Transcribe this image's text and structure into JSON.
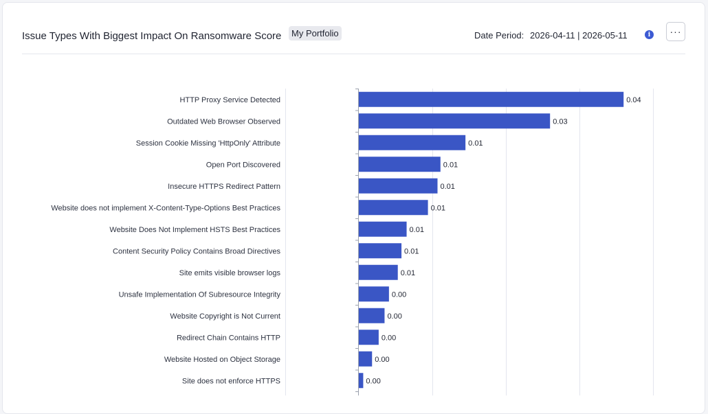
{
  "header": {
    "title": "Issue Types With Biggest Impact On Ransomware Score",
    "badge": "My Portfolio",
    "period_label": "Date Period:",
    "period_value": "2026-04-11 | 2026-05-11",
    "info_icon": "info-icon",
    "more_label": "···"
  },
  "colors": {
    "bar": "#3a56c5",
    "grid": "#e3e5ee",
    "axis": "#9aa0ad"
  },
  "chart_data": {
    "type": "bar",
    "orientation": "horizontal",
    "categories": [
      "HTTP Proxy Service Detected",
      "Outdated Web Browser Observed",
      "Session Cookie Missing 'HttpOnly' Attribute",
      "Open Port Discovered",
      "Insecure HTTPS Redirect Pattern",
      "Website does not implement X-Content-Type-Options Best Practices",
      "Website Does Not Implement HSTS Best Practices",
      "Content Security Policy Contains Broad Directives",
      "Site emits visible browser logs",
      "Unsafe Implementation Of Subresource Integrity",
      "Website Copyright is Not Current",
      "Redirect Chain Contains HTTP",
      "Website Hosted on Object Storage",
      "Site does not enforce HTTPS"
    ],
    "values": [
      0.036,
      0.026,
      0.0145,
      0.0111,
      0.0107,
      0.0094,
      0.0065,
      0.0058,
      0.0053,
      0.0041,
      0.0035,
      0.0027,
      0.0018,
      0.0006
    ],
    "labels": [
      "0.04",
      "0.03",
      "0.01",
      "0.01",
      "0.01",
      "0.01",
      "0.01",
      "0.01",
      "0.01",
      "0.00",
      "0.00",
      "0.00",
      "0.00",
      "0.00"
    ],
    "xlim": [
      0,
      0.04
    ],
    "grid": true
  }
}
